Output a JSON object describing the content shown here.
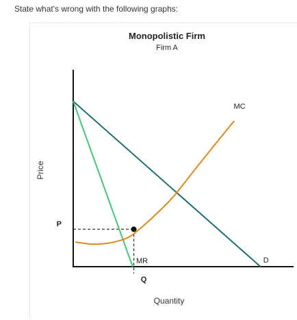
{
  "question": "State what's wrong with the following graphs:",
  "chart_data": {
    "type": "line",
    "title": "Monopolistic Firm",
    "subtitle": "Firm A",
    "xlabel": "Quantity",
    "ylabel": "Price",
    "grid": false,
    "xlim": [
      0,
      10
    ],
    "ylim": [
      0,
      10
    ],
    "series": [
      {
        "name": "D",
        "color": "#1f6e6e",
        "points": [
          [
            0,
            8.4
          ],
          [
            8.5,
            0
          ]
        ]
      },
      {
        "name": "MR",
        "color": "#3cc878",
        "points": [
          [
            0,
            8.4
          ],
          [
            2.7,
            0
          ]
        ]
      },
      {
        "name": "MC",
        "color": "#de8a1a",
        "points": [
          [
            0.1,
            1.25
          ],
          [
            0.8,
            1.15
          ],
          [
            1.5,
            1.18
          ],
          [
            2.2,
            1.35
          ],
          [
            2.6,
            1.55
          ],
          [
            3.0,
            1.9
          ],
          [
            3.7,
            2.6
          ],
          [
            4.5,
            3.5
          ],
          [
            5.5,
            4.9
          ],
          [
            6.5,
            6.3
          ],
          [
            7.3,
            7.4
          ]
        ]
      }
    ],
    "marker": {
      "x": 2.75,
      "y": 1.9
    },
    "p_label": "P",
    "q_label": "Q"
  }
}
